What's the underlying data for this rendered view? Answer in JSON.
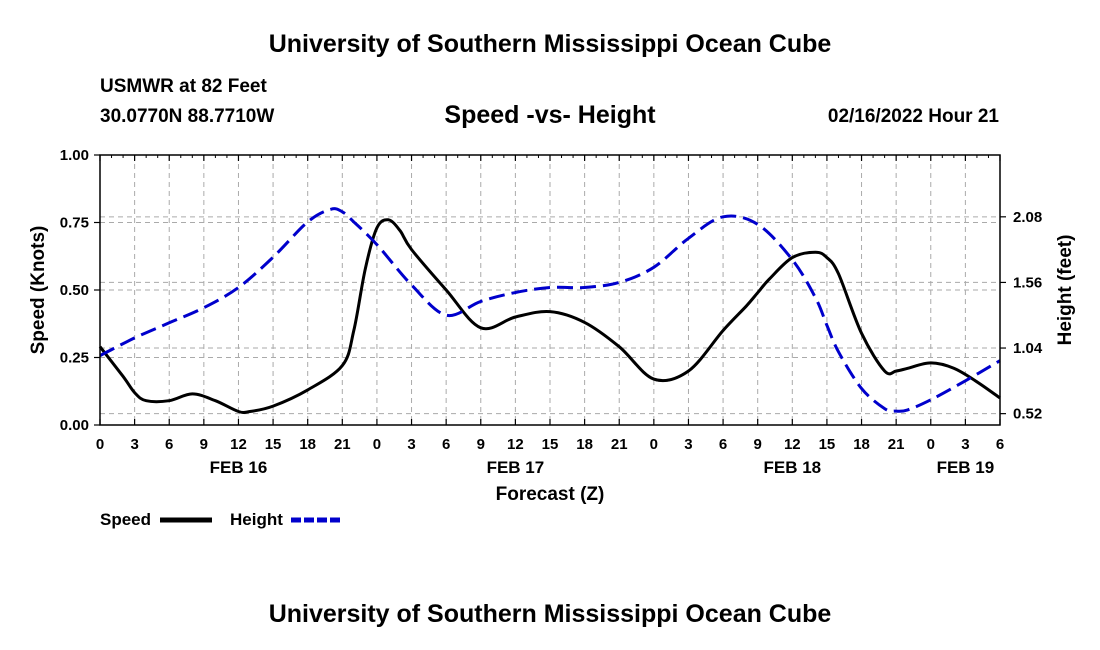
{
  "header": {
    "title": "University of Southern Mississippi Ocean Cube",
    "station": "USMWR at 82 Feet",
    "coords": "30.0770N  88.7710W",
    "subtitle": "Speed -vs- Height",
    "datetime": "02/16/2022 Hour 21"
  },
  "footer": {
    "title": "University of Southern Mississippi Ocean Cube"
  },
  "chart_data": {
    "type": "line",
    "title": "Speed -vs- Height",
    "xlabel": "Forecast (Z)",
    "ylabel": "Speed (Knots)",
    "y2label": "Height (feet)",
    "xlim": [
      0,
      78
    ],
    "ylim": [
      0,
      1.0
    ],
    "y2lim": [
      0.43,
      2.57
    ],
    "grid": true,
    "x_ticks": [
      0,
      3,
      6,
      9,
      12,
      15,
      18,
      21,
      24,
      27,
      30,
      33,
      36,
      39,
      42,
      45,
      48,
      51,
      54,
      57,
      60,
      63,
      66,
      69,
      72,
      75,
      78
    ],
    "x_tick_labels": [
      "0",
      "3",
      "6",
      "9",
      "12",
      "15",
      "18",
      "21",
      "0",
      "3",
      "6",
      "9",
      "12",
      "15",
      "18",
      "21",
      "0",
      "3",
      "6",
      "9",
      "12",
      "15",
      "18",
      "21",
      "0",
      "3",
      "6"
    ],
    "y_ticks": [
      0,
      0.25,
      0.5,
      0.75,
      1.0
    ],
    "y_tick_labels": [
      "0.00",
      "0.25",
      "0.50",
      "0.75",
      "1.00"
    ],
    "y2_ticks": [
      0.52,
      1.04,
      1.56,
      2.08
    ],
    "y2_tick_labels": [
      "0.52",
      "1.04",
      "1.56",
      "2.08"
    ],
    "day_labels": [
      {
        "x": 12,
        "label": "FEB 16"
      },
      {
        "x": 36,
        "label": "FEB 17"
      },
      {
        "x": 60,
        "label": "FEB 18"
      },
      {
        "x": 75,
        "label": "FEB 19"
      }
    ],
    "series": [
      {
        "name": "Speed",
        "axis": "left",
        "color": "#000000",
        "style": "solid",
        "x": [
          0,
          2,
          3,
          4,
          6,
          8,
          10,
          12,
          13,
          15,
          18,
          21,
          22,
          23,
          24,
          25,
          26,
          27,
          30,
          33,
          36,
          39,
          42,
          45,
          48,
          51,
          54,
          56,
          57,
          58,
          60,
          62,
          63,
          64,
          66,
          68,
          69,
          70,
          72,
          74,
          76,
          78
        ],
        "values": [
          0.29,
          0.18,
          0.12,
          0.09,
          0.09,
          0.115,
          0.09,
          0.05,
          0.05,
          0.07,
          0.13,
          0.22,
          0.35,
          0.58,
          0.73,
          0.76,
          0.72,
          0.65,
          0.5,
          0.36,
          0.4,
          0.42,
          0.38,
          0.29,
          0.17,
          0.2,
          0.35,
          0.44,
          0.49,
          0.54,
          0.62,
          0.64,
          0.62,
          0.56,
          0.34,
          0.2,
          0.2,
          0.21,
          0.23,
          0.21,
          0.16,
          0.1
        ]
      },
      {
        "name": "Height",
        "axis": "right",
        "color": "#0000cc",
        "style": "dashed",
        "x": [
          0,
          3,
          6,
          9,
          12,
          15,
          18,
          20,
          21,
          22,
          24,
          27,
          30,
          33,
          36,
          39,
          42,
          45,
          48,
          51,
          54,
          57,
          60,
          62,
          63,
          64,
          66,
          68,
          69,
          70,
          72,
          75,
          78
        ],
        "values": [
          0.98,
          1.12,
          1.24,
          1.36,
          1.52,
          1.76,
          2.04,
          2.14,
          2.12,
          2.04,
          1.86,
          1.54,
          1.3,
          1.41,
          1.48,
          1.52,
          1.52,
          1.56,
          1.68,
          1.91,
          2.08,
          2.02,
          1.74,
          1.44,
          1.22,
          1.01,
          0.72,
          0.56,
          0.54,
          0.55,
          0.63,
          0.78,
          0.94
        ]
      }
    ],
    "legend": {
      "placement": "bottom-left",
      "entries": [
        {
          "label": "Speed",
          "color": "#000000",
          "style": "solid"
        },
        {
          "label": "Height",
          "color": "#0000cc",
          "style": "dashed"
        }
      ]
    }
  }
}
